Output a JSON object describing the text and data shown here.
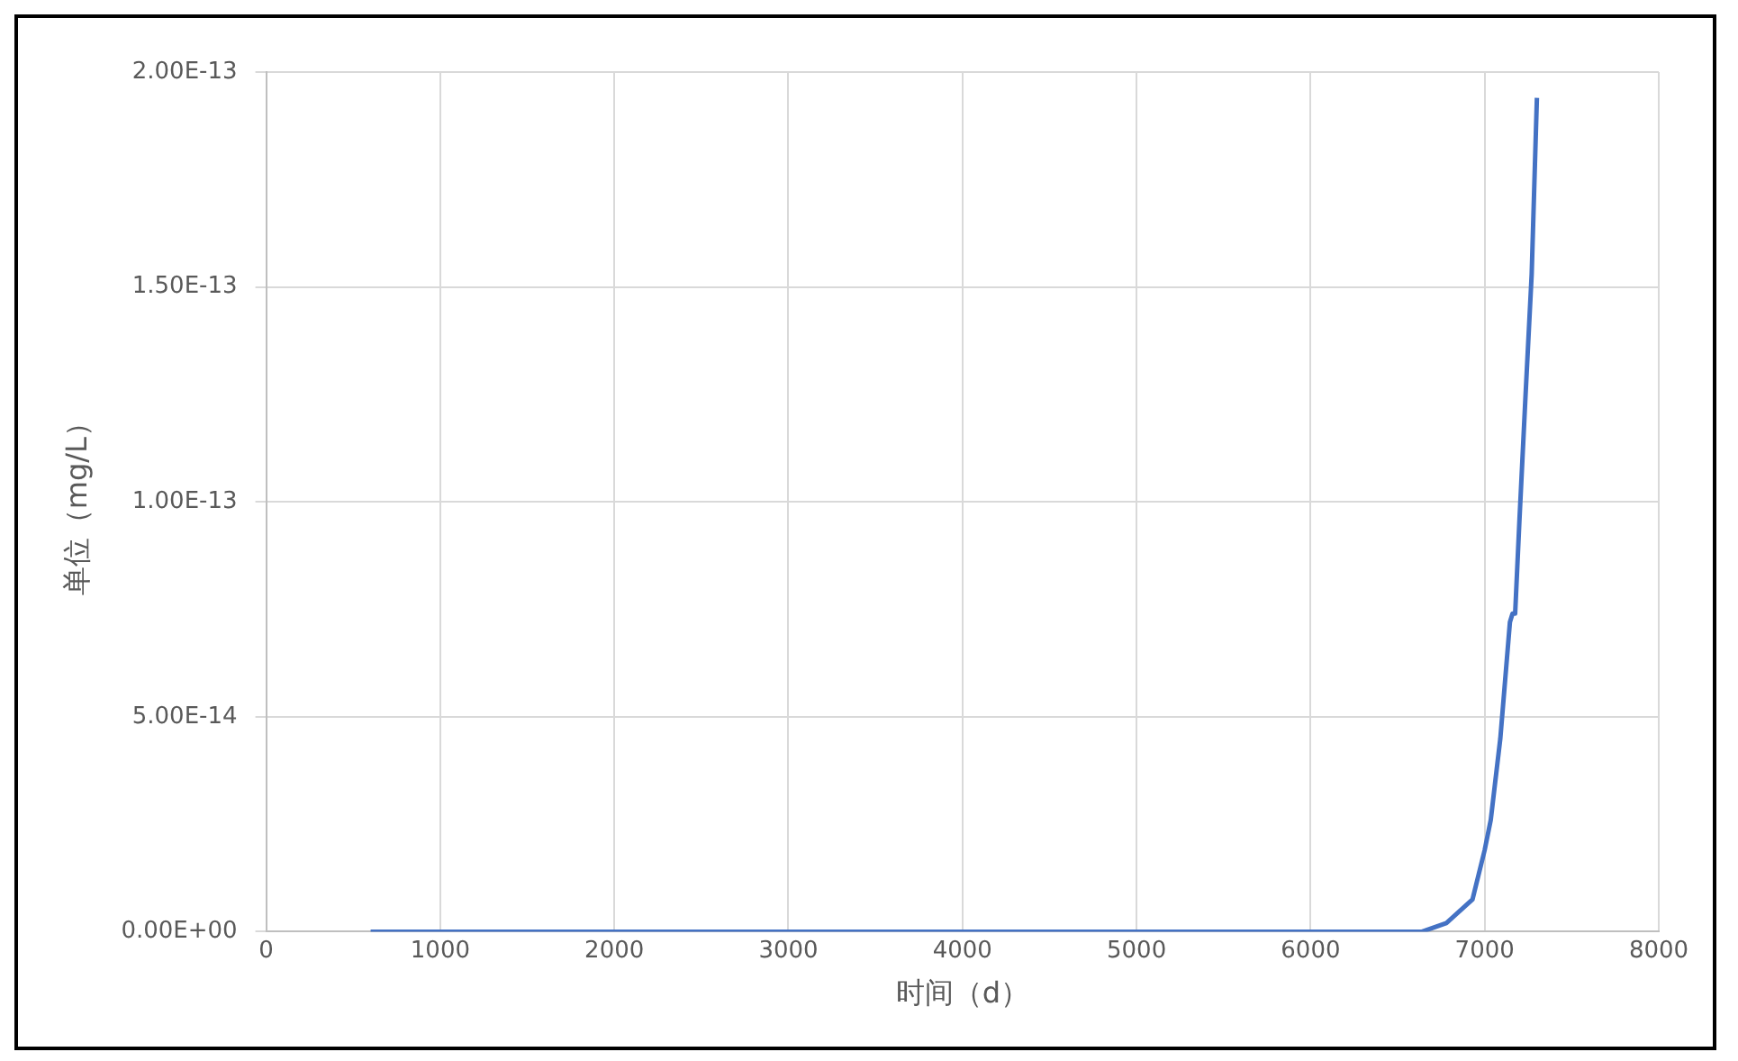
{
  "chart_data": {
    "type": "line",
    "xlabel": "时间（d）",
    "ylabel": "单位（mg/L）",
    "xlim": [
      0,
      8000
    ],
    "xticks": [
      0,
      1000,
      2000,
      3000,
      4000,
      5000,
      6000,
      7000,
      8000
    ],
    "ylim": [
      0,
      2e-13
    ],
    "yticks": [
      {
        "value": 0,
        "label": "0.00E+00"
      },
      {
        "value": 5e-14,
        "label": "5.00E-14"
      },
      {
        "value": 1e-13,
        "label": "1.00E-13"
      },
      {
        "value": 1.5e-13,
        "label": "1.50E-13"
      },
      {
        "value": 2e-13,
        "label": "2.00E-13"
      }
    ],
    "grid": true,
    "legend": false,
    "marker": "none",
    "line_style": "solid",
    "series": [
      {
        "color": "#4472c4",
        "x": [
          600,
          2000,
          4000,
          6000,
          6640,
          6780,
          6930,
          7000,
          7035,
          7090,
          7145,
          7160,
          7175,
          7200,
          7235,
          7270,
          7300
        ],
        "values": [
          0,
          0,
          0,
          0,
          0,
          2e-15,
          7.5e-15,
          1.9e-14,
          2.6e-14,
          4.5e-14,
          7.2e-14,
          7.4e-14,
          7.4e-14,
          9.6e-14,
          1.25e-13,
          1.53e-13,
          1.94e-13
        ]
      }
    ]
  }
}
